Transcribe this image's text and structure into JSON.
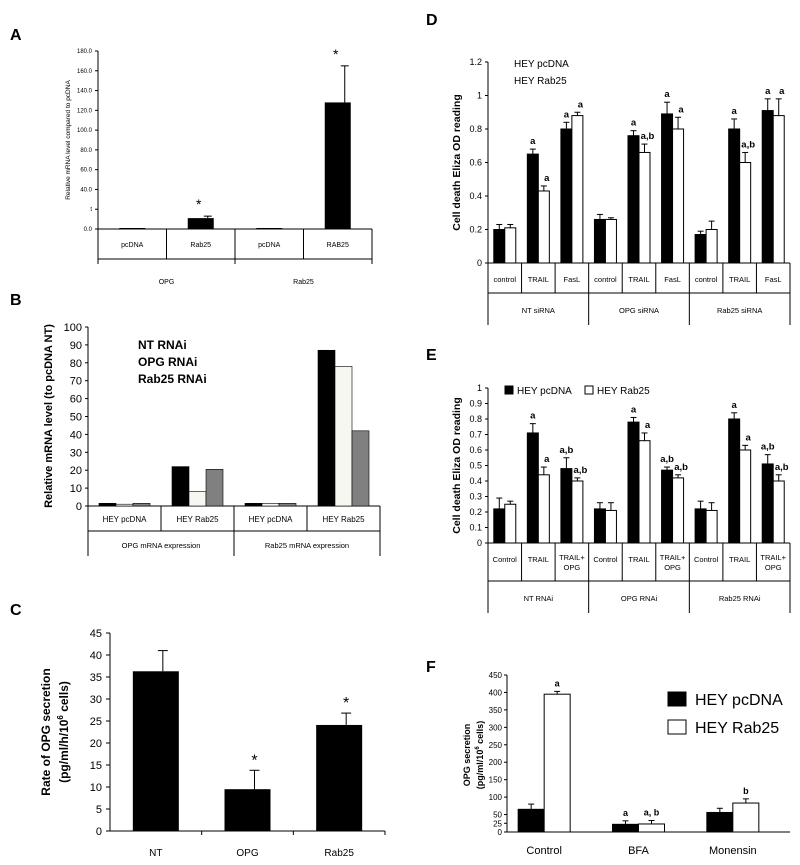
{
  "chart_data": [
    {
      "panel": "A",
      "type": "bar",
      "ylabel": "Relative mRNA level compared to pcDNA",
      "yticks": [
        "0.0",
        "t",
        "40.0",
        "60.0",
        "80.0",
        "100.0",
        "120.0",
        "140.0",
        "160.0",
        "180.0"
      ],
      "ylim": [
        0,
        180
      ],
      "groups": [
        "OPG",
        "Rab25"
      ],
      "categories": [
        "pcDNA",
        "Rab25",
        "pcDNA",
        "RAB25"
      ],
      "values": [
        1,
        11,
        1,
        128
      ],
      "errors": [
        0,
        2,
        0,
        37
      ],
      "colors": [
        "#000000",
        "#000000",
        "#000000",
        "#000000"
      ],
      "annotations": [
        "",
        "*",
        "",
        "*"
      ]
    },
    {
      "panel": "B",
      "type": "bar",
      "ylabel": "Relative mRNA level (to pcDNA NT)",
      "yticks": [
        "0",
        "10",
        "20",
        "30",
        "40",
        "50",
        "60",
        "70",
        "80",
        "90",
        "100"
      ],
      "ylim": [
        0,
        100
      ],
      "groups": [
        "OPG mRNA expression",
        "Rab25 mRNA expression"
      ],
      "categories": [
        "HEY pcDNA",
        "HEY Rab25",
        "HEY pcDNA",
        "HEY Rab25"
      ],
      "legend": [
        "NT RNAi",
        "OPG RNAi",
        "Rab25 RNAi"
      ],
      "series": [
        {
          "name": "NT RNAi",
          "color": "#000000",
          "values": [
            1.5,
            22,
            1.5,
            87
          ]
        },
        {
          "name": "OPG RNAi",
          "color": "#f7f7f2",
          "values": [
            1,
            8,
            1.5,
            78
          ]
        },
        {
          "name": "Rab25 RNAi",
          "color": "#808080",
          "values": [
            1.5,
            20.5,
            1.5,
            42
          ]
        }
      ]
    },
    {
      "panel": "C",
      "type": "bar",
      "ylabel": "Rate of OPG secretion",
      "ylabel2": "(pg/ml/h/10",
      "ylabel2_sup": "6",
      "ylabel2_end": " cells)",
      "yticks": [
        "0",
        "5",
        "10",
        "15",
        "20",
        "25",
        "30",
        "35",
        "40",
        "45"
      ],
      "ylim": [
        0,
        45
      ],
      "categories": [
        "NT",
        "OPG",
        "Rab25"
      ],
      "values": [
        36.3,
        9.5,
        24.1
      ],
      "errors": [
        4.7,
        4.3,
        2.7
      ],
      "colors": [
        "#000000",
        "#000000",
        "#000000"
      ],
      "annotations": [
        "",
        "*",
        "*"
      ]
    },
    {
      "panel": "D",
      "type": "bar",
      "ylabel": "Cell death Eliza OD reading",
      "yticks": [
        "0",
        "0.2",
        "0.4",
        "0.6",
        "0.8",
        "1",
        "1.2"
      ],
      "ylim": [
        0,
        1.2
      ],
      "groups": [
        "NT siRNA",
        "OPG siRNA",
        "Rab25 siRNA"
      ],
      "categories": [
        "control",
        "TRAIL",
        "FasL",
        "control",
        "TRAIL",
        "FasL",
        "control",
        "TRAIL",
        "FasL"
      ],
      "legend": [
        "HEY pcDNA",
        "HEY Rab25"
      ],
      "series": [
        {
          "name": "HEY pcDNA",
          "color": "#000000",
          "values": [
            0.2,
            0.65,
            0.8,
            0.26,
            0.76,
            0.89,
            0.17,
            0.8,
            0.91
          ],
          "errors": [
            0.03,
            0.03,
            0.04,
            0.03,
            0.03,
            0.07,
            0.02,
            0.06,
            0.07
          ],
          "annotations": [
            "",
            "a",
            "a",
            "",
            "a",
            "a",
            "",
            "a",
            "a"
          ]
        },
        {
          "name": "HEY Rab25",
          "color": "#ffffff",
          "values": [
            0.21,
            0.43,
            0.88,
            0.26,
            0.66,
            0.8,
            0.2,
            0.6,
            0.88
          ],
          "errors": [
            0.02,
            0.03,
            0.02,
            0.01,
            0.05,
            0.07,
            0.05,
            0.06,
            0.1
          ],
          "annotations": [
            "",
            "a",
            "a",
            "",
            "a,b",
            "a",
            "",
            "a,b",
            "a"
          ]
        }
      ]
    },
    {
      "panel": "E",
      "type": "bar",
      "ylabel": "Cell death Eliza OD reading",
      "yticks": [
        "0",
        "0.1",
        "0.2",
        "0.3",
        "0.4",
        "0.5",
        "0.6",
        "0.7",
        "0.8",
        "0.9",
        "1"
      ],
      "ylim": [
        0,
        1
      ],
      "groups": [
        "NT RNAi",
        "OPG  RNAi",
        "Rab25  RNAi"
      ],
      "categories": [
        "Control",
        "TRAIL",
        "TRAIL+ OPG",
        "Control",
        "TRAIL",
        "TRAIL+ OPG",
        "Control",
        "TRAIL",
        "TRAIL+ OPG"
      ],
      "legend": [
        "HEY pcDNA",
        "HEY Rab25"
      ],
      "series": [
        {
          "name": "HEY pcDNA",
          "color": "#000000",
          "values": [
            0.22,
            0.71,
            0.48,
            0.22,
            0.78,
            0.47,
            0.22,
            0.8,
            0.51
          ],
          "errors": [
            0.07,
            0.06,
            0.07,
            0.04,
            0.03,
            0.02,
            0.05,
            0.04,
            0.06
          ],
          "annotations": [
            "",
            "a",
            "a,b",
            "",
            "a",
            "a,b",
            "",
            "a",
            "a,b"
          ]
        },
        {
          "name": "HEY Rab25",
          "color": "#ffffff",
          "values": [
            0.25,
            0.44,
            0.4,
            0.21,
            0.66,
            0.42,
            0.21,
            0.6,
            0.4
          ],
          "errors": [
            0.02,
            0.05,
            0.02,
            0.05,
            0.05,
            0.02,
            0.05,
            0.03,
            0.04
          ],
          "annotations": [
            "",
            "a",
            "a,b",
            "",
            "a",
            "a,b",
            "",
            "a",
            "a,b"
          ]
        }
      ]
    },
    {
      "panel": "F",
      "type": "bar",
      "ylabel": "OPG secretion",
      "ylabel2": "(pg/ml/10",
      "ylabel2_sup": "6",
      "ylabel2_end": " cells)",
      "yticks": [
        "0",
        "25",
        "50",
        "100",
        "150",
        "200",
        "250",
        "300",
        "350",
        "400",
        "450"
      ],
      "ylim": [
        0,
        450
      ],
      "categories": [
        "Control",
        "BFA",
        "Monensin"
      ],
      "legend": [
        "HEY pcDNA",
        "HEY Rab25"
      ],
      "series": [
        {
          "name": "HEY pcDNA",
          "color": "#000000",
          "values": [
            65,
            22,
            56
          ],
          "errors": [
            15,
            10,
            12
          ],
          "annotations": [
            "",
            "a",
            ""
          ]
        },
        {
          "name": "HEY Rab25",
          "color": "#ffffff",
          "values": [
            395,
            23,
            83
          ],
          "errors": [
            8,
            10,
            12
          ],
          "annotations": [
            "a",
            "a, b",
            "b"
          ]
        }
      ]
    }
  ]
}
